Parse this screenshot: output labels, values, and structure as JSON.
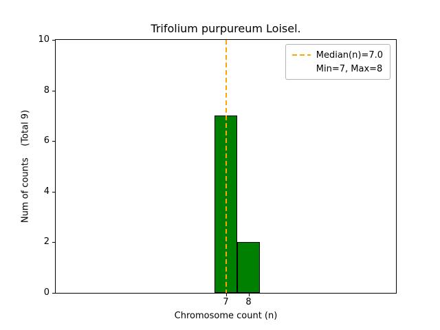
{
  "chart_data": {
    "type": "bar",
    "title": "Trifolium purpureum Loisel.",
    "xlabel": "Chromosome count (n)",
    "ylabel": "Num of counts    (Total 9)",
    "categories": [
      7,
      8
    ],
    "values": [
      7,
      2
    ],
    "total_counts": 9,
    "median": 7.0,
    "min": 7,
    "max": 8,
    "xlim": [
      -0.5,
      14.5
    ],
    "ylim": [
      0,
      10
    ],
    "yticks": [
      0,
      2,
      4,
      6,
      8,
      10
    ],
    "xticks": [
      7,
      8
    ],
    "grid": false,
    "bar_color": "#008000",
    "bar_edge_color": "#000000",
    "median_line_color": "#FFA500",
    "legend_position": "upper right",
    "legend": [
      "Median(n)=7.0",
      "Min=7, Max=8"
    ]
  }
}
